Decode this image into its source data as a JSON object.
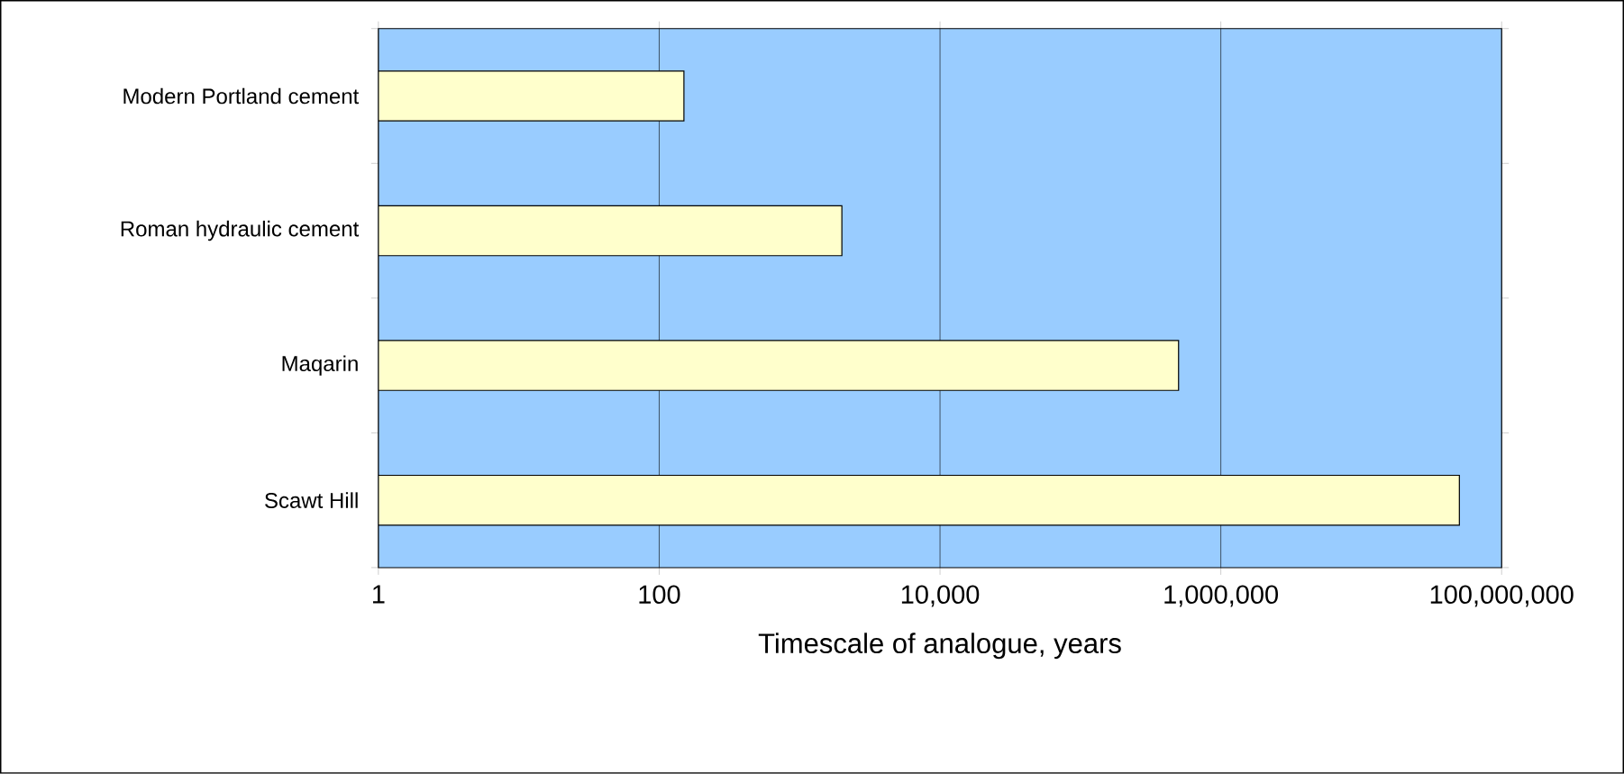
{
  "chart_data": {
    "type": "bar",
    "orientation": "horizontal",
    "xlabel": "Timescale of analogue, years",
    "categories": [
      "Modern Portland cement",
      "Roman hydraulic cement",
      "Maqarin",
      "Scawt Hill"
    ],
    "series": [
      {
        "color": "#ffffcc",
        "values": [
          150,
          2000,
          500000,
          50000000
        ]
      }
    ],
    "log": "x",
    "xlim": [
      1,
      100000000
    ],
    "xticks": [
      1,
      100,
      {
        "value": 10000,
        "label": "10,000"
      },
      {
        "value": 1000000,
        "label": "1,000,000"
      },
      {
        "value": 100000000,
        "label": "100,000,000"
      }
    ],
    "grid": "x"
  }
}
